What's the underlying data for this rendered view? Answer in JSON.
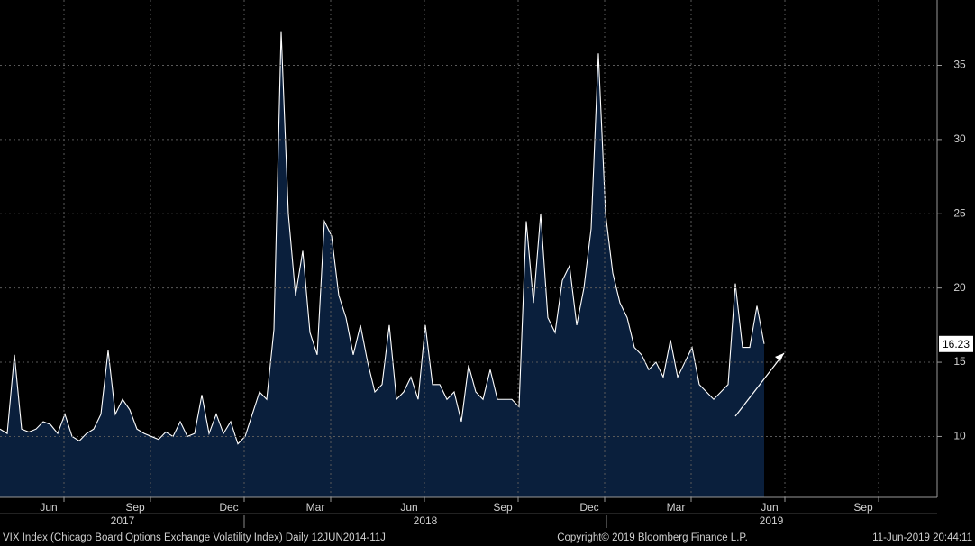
{
  "chart_data": {
    "type": "area",
    "categories": [
      null,
      null,
      null,
      null,
      null,
      null,
      null,
      "Jun",
      null,
      null,
      null,
      null,
      null,
      null,
      null,
      null,
      null,
      null,
      null,
      "Sep",
      null,
      null,
      null,
      null,
      null,
      null,
      null,
      null,
      null,
      null,
      null,
      null,
      "Dec",
      null,
      null,
      null,
      null,
      null,
      null,
      null,
      null,
      null,
      null,
      null,
      "Mar",
      null,
      null,
      null,
      null,
      null,
      null,
      null,
      null,
      null,
      null,
      null,
      null,
      "Jun",
      null,
      null,
      null,
      null,
      null,
      null,
      null,
      null,
      null,
      null,
      null,
      null,
      "Sep",
      null,
      null,
      null,
      null,
      null,
      null,
      null,
      null,
      null,
      null,
      null,
      "Dec",
      null,
      null,
      null,
      null,
      null,
      null,
      null,
      null,
      null,
      null,
      null,
      "Mar",
      null,
      null,
      null,
      null,
      null,
      null,
      null,
      null,
      null,
      null,
      null,
      null,
      "Jun",
      null,
      null,
      null,
      null,
      null,
      null,
      null,
      null,
      null,
      null,
      null,
      null,
      "Sep",
      null,
      null,
      null,
      null,
      null,
      null,
      null,
      null,
      null
    ],
    "category_groups": [
      null,
      null,
      null,
      null,
      null,
      null,
      null,
      null,
      null,
      null,
      null,
      null,
      null,
      null,
      null,
      null,
      null,
      "2017",
      null,
      null,
      null,
      null,
      null,
      null,
      null,
      null,
      null,
      null,
      null,
      null,
      null,
      null,
      null,
      null,
      null,
      null,
      null,
      null,
      null,
      null,
      null,
      null,
      null,
      null,
      null,
      null,
      null,
      null,
      null,
      null,
      null,
      null,
      null,
      null,
      null,
      null,
      null,
      null,
      null,
      "2018",
      null,
      null,
      null,
      null,
      null,
      null,
      null,
      null,
      null,
      null,
      null,
      null,
      null,
      null,
      null,
      null,
      null,
      null,
      null,
      null,
      null,
      null,
      null,
      null,
      null,
      null,
      null,
      null,
      null,
      null,
      null,
      null,
      null,
      null,
      null,
      null,
      null,
      null,
      null,
      null,
      null,
      null,
      null,
      null,
      null,
      null,
      null,
      "2019",
      null,
      null,
      null,
      null,
      null,
      null,
      null,
      null,
      null,
      null,
      null,
      null,
      null,
      null,
      null,
      null,
      null,
      null,
      null,
      null,
      null,
      null
    ],
    "series": [
      {
        "name": "VIX Index",
        "color": "#ffffff",
        "fill": "#0a1f3c",
        "values": [
          10.5,
          10.2,
          15.5,
          10.5,
          10.3,
          10.5,
          11,
          10.8,
          10.2,
          11.5,
          10,
          9.7,
          10.2,
          10.5,
          11.5,
          15.8,
          11.5,
          12.5,
          11.8,
          10.5,
          10.2,
          10,
          9.8,
          10.3,
          10,
          11,
          10,
          10.2,
          12.8,
          10.2,
          11.5,
          10.2,
          11,
          9.5,
          10,
          11.5,
          13,
          12.5,
          17.2,
          37.3,
          25,
          19.5,
          22.5,
          17,
          15.5,
          24.5,
          23.5,
          19.5,
          18,
          15.5,
          17.5,
          15,
          13,
          13.5,
          17.5,
          12.5,
          13,
          14,
          12.5,
          17.5,
          13.5,
          13.5,
          12.5,
          13,
          11,
          14.8,
          13,
          12.5,
          14.5,
          12.5,
          12.5,
          12.5,
          12,
          24.5,
          19,
          25,
          18,
          17,
          20.5,
          21.5,
          17.5,
          20,
          24,
          35.8,
          25,
          21,
          19,
          18,
          16,
          15.5,
          14.5,
          15,
          14,
          16.5,
          14,
          15,
          16,
          13.5,
          13,
          12.5,
          13,
          13.5,
          20.3,
          16,
          16,
          18.8,
          16.23,
          null,
          null,
          null,
          null,
          null,
          null,
          null,
          null,
          null,
          null,
          null,
          null,
          null,
          null,
          null,
          null,
          null,
          null,
          null,
          null,
          null,
          null,
          null
        ]
      }
    ],
    "ylim": [
      5.9,
      39.4
    ],
    "yticks": [
      10,
      15,
      20,
      25,
      30,
      35
    ],
    "grid": true
  },
  "footer": {
    "left": "VIX Index (Chicago Board Options Exchange Volatility Index)  Daily 12JUN2014-11J",
    "center": "Copyright© 2019 Bloomberg Finance L.P.",
    "right": "11-Jun-2019 20:44:11"
  }
}
